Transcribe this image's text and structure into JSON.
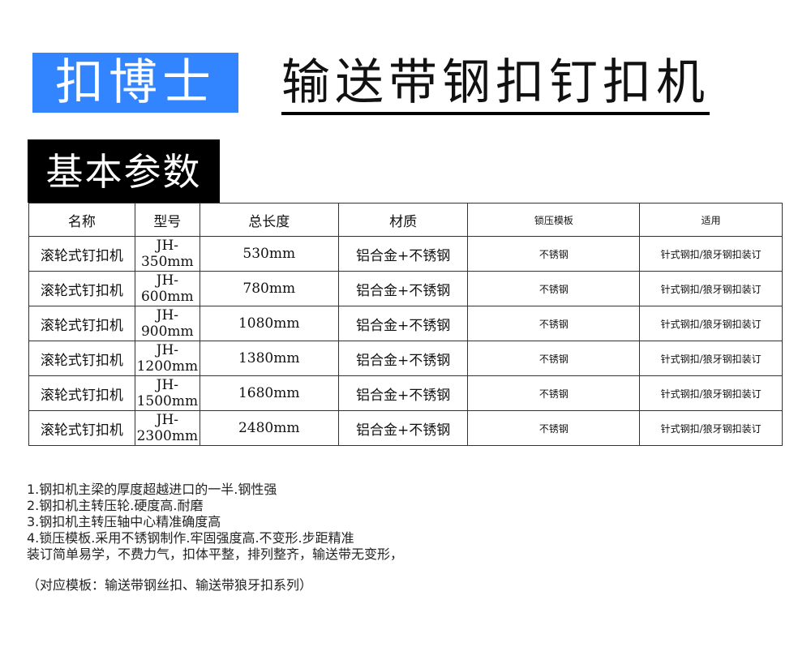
{
  "brand": "扣博士",
  "title": "输送带钢扣钉扣机",
  "section": "基本参数",
  "table": {
    "headers": [
      "名称",
      "型号",
      "总长度",
      "材质",
      "锁压模板",
      "适用"
    ],
    "rows": [
      [
        "滚轮式钉扣机",
        "JH-350mm",
        "530mm",
        "铝合金+不锈钢",
        "不锈钢",
        "针式钢扣/狼牙钢扣装订"
      ],
      [
        "滚轮式钉扣机",
        "JH-600mm",
        "780mm",
        "铝合金+不锈钢",
        "不锈钢",
        "针式钢扣/狼牙钢扣装订"
      ],
      [
        "滚轮式钉扣机",
        "JH-900mm",
        "1080mm",
        "铝合金+不锈钢",
        "不锈钢",
        "针式钢扣/狼牙钢扣装订"
      ],
      [
        "滚轮式钉扣机",
        "JH-1200mm",
        "1380mm",
        "铝合金+不锈钢",
        "不锈钢",
        "针式钢扣/狼牙钢扣装订"
      ],
      [
        "滚轮式钉扣机",
        "JH-1500mm",
        "1680mm",
        "铝合金+不锈钢",
        "不锈钢",
        "针式钢扣/狼牙钢扣装订"
      ],
      [
        "滚轮式钉扣机",
        "JH-2300mm",
        "2480mm",
        "铝合金+不锈钢",
        "不锈钢",
        "针式钢扣/狼牙钢扣装订"
      ]
    ]
  },
  "notes": [
    "1.钢扣机主梁的厚度超越进口的一半.钢性强",
    "2.钢扣机主转压轮.硬度高.耐磨",
    "3.钢扣机主转压轴中心精准确度高",
    "4.锁压模板.采用不锈钢制作.牢固强度高.不变形.步距精准",
    "装订简单易学，不费力气，扣体平整，排列整齐，输送带无变形，"
  ],
  "footnote": "（对应模板：输送带钢丝扣、输送带狼牙扣系列）",
  "colors": {
    "brand_bg": "#3385ff",
    "section_bg": "#000000"
  }
}
